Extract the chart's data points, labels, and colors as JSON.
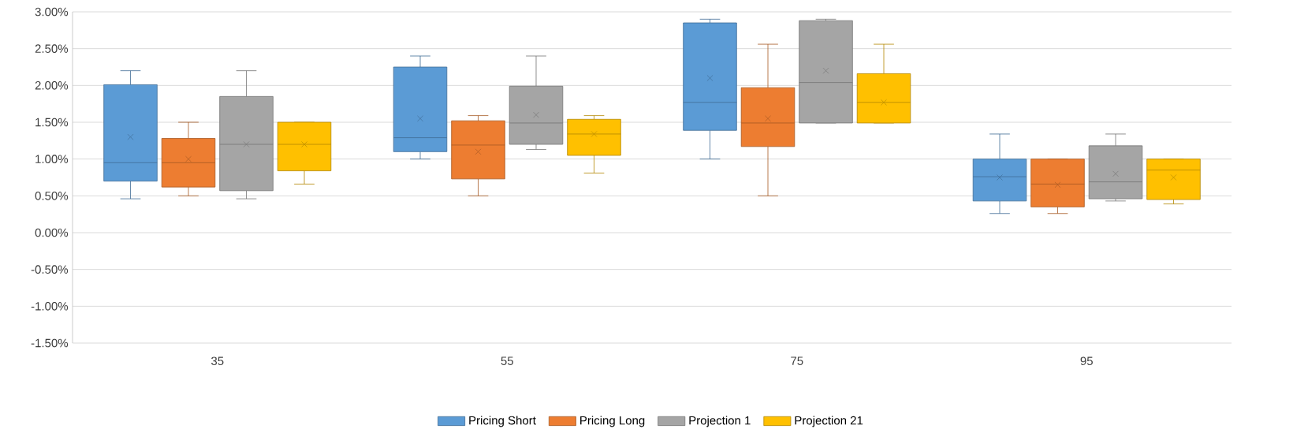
{
  "chart_data": {
    "type": "box",
    "categories": [
      "35",
      "55",
      "75",
      "95"
    ],
    "series": [
      {
        "name": "Pricing Short",
        "color": "#5b9bd5",
        "boxes": [
          {
            "low": 0.46,
            "q1": 0.7,
            "median": 0.95,
            "q3": 2.01,
            "high": 2.2,
            "mean": 1.3
          },
          {
            "low": 1.0,
            "q1": 1.1,
            "median": 1.29,
            "q3": 2.25,
            "high": 2.4,
            "mean": 1.55
          },
          {
            "low": 1.0,
            "q1": 1.39,
            "median": 1.77,
            "q3": 2.85,
            "high": 2.9,
            "mean": 2.1
          },
          {
            "low": 0.26,
            "q1": 0.43,
            "median": 0.76,
            "q3": 1.0,
            "high": 1.34,
            "mean": 0.75
          }
        ]
      },
      {
        "name": "Pricing Long",
        "color": "#ed7d31",
        "boxes": [
          {
            "low": 0.5,
            "q1": 0.62,
            "median": 0.95,
            "q3": 1.28,
            "high": 1.5,
            "mean": 1.0
          },
          {
            "low": 0.5,
            "q1": 0.73,
            "median": 1.19,
            "q3": 1.52,
            "high": 1.59,
            "mean": 1.1
          },
          {
            "low": 0.5,
            "q1": 1.17,
            "median": 1.49,
            "q3": 1.97,
            "high": 2.56,
            "mean": 1.55
          },
          {
            "low": 0.26,
            "q1": 0.35,
            "median": 0.66,
            "q3": 1.0,
            "high": 1.0,
            "mean": 0.65
          }
        ]
      },
      {
        "name": "Projection 1",
        "color": "#a5a5a5",
        "boxes": [
          {
            "low": 0.46,
            "q1": 0.57,
            "median": 1.2,
            "q3": 1.85,
            "high": 2.2,
            "mean": 1.2
          },
          {
            "low": 1.13,
            "q1": 1.2,
            "median": 1.49,
            "q3": 1.99,
            "high": 2.4,
            "mean": 1.6
          },
          {
            "low": 1.49,
            "q1": 1.49,
            "median": 2.04,
            "q3": 2.88,
            "high": 2.9,
            "mean": 2.2
          },
          {
            "low": 0.43,
            "q1": 0.46,
            "median": 0.69,
            "q3": 1.18,
            "high": 1.34,
            "mean": 0.8
          }
        ]
      },
      {
        "name": "Projection 21",
        "color": "#ffc000",
        "boxes": [
          {
            "low": 0.66,
            "q1": 0.84,
            "median": 1.2,
            "q3": 1.5,
            "high": 1.5,
            "mean": 1.2
          },
          {
            "low": 0.81,
            "q1": 1.05,
            "median": 1.34,
            "q3": 1.54,
            "high": 1.59,
            "mean": 1.34
          },
          {
            "low": 1.49,
            "q1": 1.49,
            "median": 1.77,
            "q3": 2.16,
            "high": 2.56,
            "mean": 1.77
          },
          {
            "low": 0.39,
            "q1": 0.45,
            "median": 0.85,
            "q3": 1.0,
            "high": 1.0,
            "mean": 0.75
          }
        ]
      }
    ],
    "ylim": [
      -1.5,
      3
    ],
    "yticks": [
      {
        "value": -1.5,
        "label": "-1.50%"
      },
      {
        "value": -1,
        "label": "-1.00%"
      },
      {
        "value": -0.5,
        "label": "-0.50%"
      },
      {
        "value": 0,
        "label": "0.00%"
      },
      {
        "value": 0.5,
        "label": "0.50%"
      },
      {
        "value": 1,
        "label": "1.00%"
      },
      {
        "value": 1.5,
        "label": "1.50%"
      },
      {
        "value": 2,
        "label": "2.00%"
      },
      {
        "value": 2.5,
        "label": "2.50%"
      },
      {
        "value": 3,
        "label": "3.00%"
      }
    ],
    "grid": "y",
    "legend": "bottom"
  }
}
